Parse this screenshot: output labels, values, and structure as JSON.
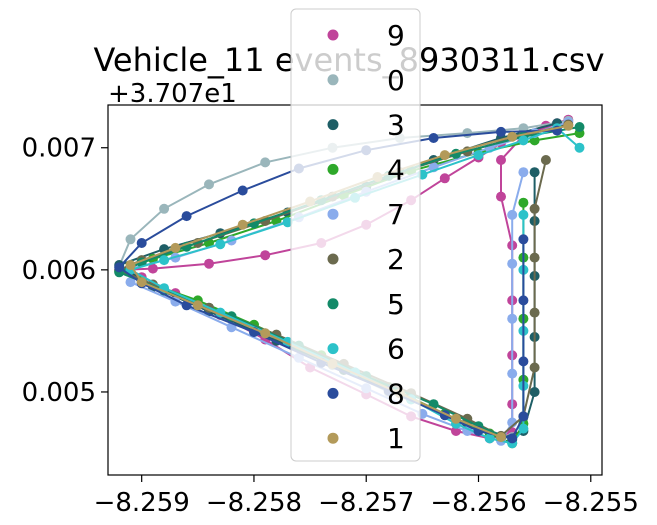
{
  "chart_data": {
    "type": "scatter",
    "title": "Vehicle_11 events_8930311.csv",
    "xlabel": "",
    "ylabel": "",
    "y_offset_label": "+3.707e1",
    "xlim": [
      -8.2593,
      -8.2549
    ],
    "ylim": [
      0.00432,
      0.00735
    ],
    "x_ticks": [
      -8.259,
      -8.258,
      -8.257,
      -8.256,
      -8.255
    ],
    "x_tick_labels": [
      "−8.259",
      "−8.258",
      "−8.257",
      "−8.256",
      "−8.255"
    ],
    "y_ticks": [
      0.005,
      0.006,
      0.007
    ],
    "y_tick_labels": [
      "0.005",
      "0.006",
      "0.007"
    ],
    "grid": false,
    "legend_position": "center",
    "legend": [
      "9",
      "0",
      "3",
      "4",
      "7",
      "2",
      "5",
      "6",
      "8",
      "1"
    ],
    "series": [
      {
        "name": "9",
        "color": "#c0449a",
        "points": [
          [
            -8.2552,
            0.00723
          ],
          [
            -8.2554,
            0.00718
          ],
          [
            -8.2556,
            0.00712
          ],
          [
            -8.2558,
            0.00704
          ],
          [
            -8.256,
            0.00692
          ],
          [
            -8.2563,
            0.00675
          ],
          [
            -8.2566,
            0.00657
          ],
          [
            -8.257,
            0.00637
          ],
          [
            -8.2574,
            0.00622
          ],
          [
            -8.2579,
            0.00612
          ],
          [
            -8.2584,
            0.00605
          ],
          [
            -8.2589,
            0.00601
          ],
          [
            -8.2592,
            0.006
          ],
          [
            -8.259,
            0.00594
          ],
          [
            -8.2587,
            0.00581
          ],
          [
            -8.2583,
            0.00563
          ],
          [
            -8.2579,
            0.00543
          ],
          [
            -8.2575,
            0.0052
          ],
          [
            -8.257,
            0.00498
          ],
          [
            -8.2566,
            0.0048
          ],
          [
            -8.2562,
            0.00468
          ],
          [
            -8.2559,
            0.00462
          ],
          [
            -8.2557,
            0.00467
          ],
          [
            -8.2557,
            0.0049
          ],
          [
            -8.2557,
            0.0053
          ],
          [
            -8.2557,
            0.00575
          ],
          [
            -8.2557,
            0.0062
          ],
          [
            -8.2558,
            0.0066
          ],
          [
            -8.2558,
            0.0069
          ],
          [
            -8.2556,
            0.0071
          ],
          [
            -8.2553,
            0.0072
          ]
        ]
      },
      {
        "name": "0",
        "color": "#9ab6bb",
        "points": [
          [
            -8.2552,
            0.00722
          ],
          [
            -8.2556,
            0.00716
          ],
          [
            -8.2561,
            0.00712
          ],
          [
            -8.2567,
            0.00708
          ],
          [
            -8.2573,
            0.007
          ],
          [
            -8.2579,
            0.00688
          ],
          [
            -8.2584,
            0.0067
          ],
          [
            -8.2588,
            0.0065
          ],
          [
            -8.2591,
            0.00625
          ],
          [
            -8.2592,
            0.00603
          ],
          [
            -8.2589,
            0.00588
          ],
          [
            -8.2584,
            0.00569
          ],
          [
            -8.2579,
            0.00548
          ],
          [
            -8.2573,
            0.00522
          ],
          [
            -8.2568,
            0.005
          ],
          [
            -8.2563,
            0.00482
          ],
          [
            -8.256,
            0.0047
          ],
          [
            -8.2557,
            0.00463
          ]
        ]
      },
      {
        "name": "3",
        "color": "#1e5e66",
        "points": [
          [
            -8.2553,
            0.0072
          ],
          [
            -8.2558,
            0.00708
          ],
          [
            -8.2564,
            0.0069
          ],
          [
            -8.257,
            0.00668
          ],
          [
            -8.2577,
            0.00647
          ],
          [
            -8.2583,
            0.0063
          ],
          [
            -8.2588,
            0.00617
          ],
          [
            -8.2592,
            0.00604
          ],
          [
            -8.2589,
            0.00586
          ],
          [
            -8.2584,
            0.00566
          ],
          [
            -8.2578,
            0.00542
          ],
          [
            -8.2572,
            0.00518
          ],
          [
            -8.2566,
            0.00494
          ],
          [
            -8.2561,
            0.00472
          ],
          [
            -8.2558,
            0.00462
          ],
          [
            -8.2556,
            0.00468
          ],
          [
            -8.2555,
            0.005
          ],
          [
            -8.2555,
            0.00545
          ],
          [
            -8.2555,
            0.00595
          ],
          [
            -8.2555,
            0.0064
          ],
          [
            -8.2555,
            0.0068
          ]
        ]
      },
      {
        "name": "4",
        "color": "#2ea82a",
        "points": [
          [
            -8.2551,
            0.00712
          ],
          [
            -8.2555,
            0.00706
          ],
          [
            -8.256,
            0.00696
          ],
          [
            -8.2566,
            0.00681
          ],
          [
            -8.2572,
            0.00661
          ],
          [
            -8.2578,
            0.0064
          ],
          [
            -8.2584,
            0.00622
          ],
          [
            -8.2589,
            0.00609
          ],
          [
            -8.2592,
            0.00599
          ],
          [
            -8.259,
            0.00591
          ],
          [
            -8.2585,
            0.00575
          ],
          [
            -8.258,
            0.00555
          ],
          [
            -8.2574,
            0.0053
          ],
          [
            -8.2568,
            0.00504
          ],
          [
            -8.2563,
            0.00482
          ],
          [
            -8.2559,
            0.00466
          ],
          [
            -8.2557,
            0.00458
          ],
          [
            -8.2556,
            0.00474
          ],
          [
            -8.2556,
            0.0051
          ],
          [
            -8.2556,
            0.0056
          ],
          [
            -8.2556,
            0.0061
          ],
          [
            -8.2556,
            0.00655
          ]
        ]
      },
      {
        "name": "7",
        "color": "#8aacec",
        "points": [
          [
            -8.2552,
            0.00721
          ],
          [
            -8.2555,
            0.00712
          ],
          [
            -8.2559,
            0.007
          ],
          [
            -8.2564,
            0.00684
          ],
          [
            -8.257,
            0.00664
          ],
          [
            -8.2576,
            0.00643
          ],
          [
            -8.2582,
            0.00624
          ],
          [
            -8.2587,
            0.0061
          ],
          [
            -8.2591,
            0.00601
          ],
          [
            -8.2591,
            0.0059
          ],
          [
            -8.2587,
            0.00574
          ],
          [
            -8.2582,
            0.00553
          ],
          [
            -8.2576,
            0.00528
          ],
          [
            -8.257,
            0.00503
          ],
          [
            -8.2565,
            0.00482
          ],
          [
            -8.2561,
            0.00468
          ],
          [
            -8.2558,
            0.0046
          ],
          [
            -8.2557,
            0.00475
          ],
          [
            -8.2557,
            0.00515
          ],
          [
            -8.2557,
            0.0056
          ],
          [
            -8.2557,
            0.00605
          ],
          [
            -8.2557,
            0.00645
          ],
          [
            -8.2556,
            0.0068
          ]
        ]
      },
      {
        "name": "2",
        "color": "#6b6a4e",
        "points": [
          [
            -8.2552,
            0.00719
          ],
          [
            -8.2556,
            0.0071
          ],
          [
            -8.2561,
            0.00697
          ],
          [
            -8.2567,
            0.0068
          ],
          [
            -8.2573,
            0.0066
          ],
          [
            -8.2579,
            0.0064
          ],
          [
            -8.2585,
            0.00622
          ],
          [
            -8.259,
            0.00608
          ],
          [
            -8.2592,
            0.006
          ],
          [
            -8.2589,
            0.00588
          ],
          [
            -8.2584,
            0.00569
          ],
          [
            -8.2578,
            0.00547
          ],
          [
            -8.2572,
            0.00523
          ],
          [
            -8.2566,
            0.00499
          ],
          [
            -8.2561,
            0.00478
          ],
          [
            -8.2558,
            0.00464
          ],
          [
            -8.2556,
            0.0048
          ],
          [
            -8.2555,
            0.0052
          ],
          [
            -8.2555,
            0.00565
          ],
          [
            -8.2555,
            0.0061
          ],
          [
            -8.2555,
            0.0065
          ],
          [
            -8.2554,
            0.0069
          ]
        ]
      },
      {
        "name": "5",
        "color": "#138a68",
        "points": [
          [
            -8.2551,
            0.00717
          ],
          [
            -8.2556,
            0.00709
          ],
          [
            -8.2562,
            0.00695
          ],
          [
            -8.2568,
            0.00677
          ],
          [
            -8.2574,
            0.00657
          ],
          [
            -8.258,
            0.00638
          ],
          [
            -8.2586,
            0.00619
          ],
          [
            -8.259,
            0.00606
          ],
          [
            -8.2592,
            0.00598
          ],
          [
            -8.2588,
            0.00583
          ],
          [
            -8.2582,
            0.00562
          ],
          [
            -8.2576,
            0.00538
          ],
          [
            -8.257,
            0.00513
          ],
          [
            -8.2564,
            0.0049
          ],
          [
            -8.256,
            0.00472
          ],
          [
            -8.2557,
            0.00461
          ]
        ]
      },
      {
        "name": "6",
        "color": "#2cc2c9",
        "points": [
          [
            -8.2551,
            0.007
          ],
          [
            -8.2553,
            0.00716
          ],
          [
            -8.2556,
            0.00706
          ],
          [
            -8.256,
            0.00694
          ],
          [
            -8.2565,
            0.00678
          ],
          [
            -8.2571,
            0.00659
          ],
          [
            -8.2577,
            0.00639
          ],
          [
            -8.2583,
            0.00621
          ],
          [
            -8.2588,
            0.00608
          ],
          [
            -8.2591,
            0.006
          ],
          [
            -8.2588,
            0.00585
          ],
          [
            -8.2583,
            0.00565
          ],
          [
            -8.2577,
            0.00541
          ],
          [
            -8.2571,
            0.00516
          ],
          [
            -8.2566,
            0.00494
          ],
          [
            -8.2562,
            0.00474
          ],
          [
            -8.2559,
            0.00462
          ],
          [
            -8.2557,
            0.00458
          ],
          [
            -8.2556,
            0.0047
          ],
          [
            -8.2556,
            0.00505
          ],
          [
            -8.2556,
            0.0055
          ],
          [
            -8.2556,
            0.006
          ],
          [
            -8.2556,
            0.00645
          ]
        ]
      },
      {
        "name": "8",
        "color": "#2a4c9c",
        "points": [
          [
            -8.2553,
            0.00714
          ],
          [
            -8.2558,
            0.00713
          ],
          [
            -8.2564,
            0.00708
          ],
          [
            -8.257,
            0.00698
          ],
          [
            -8.2576,
            0.00683
          ],
          [
            -8.2581,
            0.00665
          ],
          [
            -8.2586,
            0.00644
          ],
          [
            -8.259,
            0.00622
          ],
          [
            -8.2592,
            0.00602
          ],
          [
            -8.259,
            0.00589
          ],
          [
            -8.2586,
            0.00571
          ],
          [
            -8.258,
            0.00549
          ],
          [
            -8.2574,
            0.00524
          ],
          [
            -8.2568,
            0.00501
          ],
          [
            -8.2563,
            0.00481
          ],
          [
            -8.256,
            0.00468
          ],
          [
            -8.2557,
            0.00462
          ],
          [
            -8.2556,
            0.0048
          ],
          [
            -8.2556,
            0.00525
          ],
          [
            -8.2556,
            0.00575
          ],
          [
            -8.2556,
            0.00625
          ]
        ]
      },
      {
        "name": "1",
        "color": "#b39a5a",
        "points": [
          [
            -8.2552,
            0.00718
          ],
          [
            -8.2557,
            0.00709
          ],
          [
            -8.2563,
            0.00694
          ],
          [
            -8.2569,
            0.00676
          ],
          [
            -8.2575,
            0.00656
          ],
          [
            -8.2581,
            0.00637
          ],
          [
            -8.2587,
            0.00618
          ],
          [
            -8.2591,
            0.00604
          ],
          [
            -8.259,
            0.0059
          ],
          [
            -8.2585,
            0.00571
          ],
          [
            -8.2579,
            0.00548
          ],
          [
            -8.2573,
            0.00523
          ],
          [
            -8.2567,
            0.00499
          ],
          [
            -8.2562,
            0.00478
          ],
          [
            -8.2558,
            0.00463
          ]
        ]
      }
    ]
  }
}
